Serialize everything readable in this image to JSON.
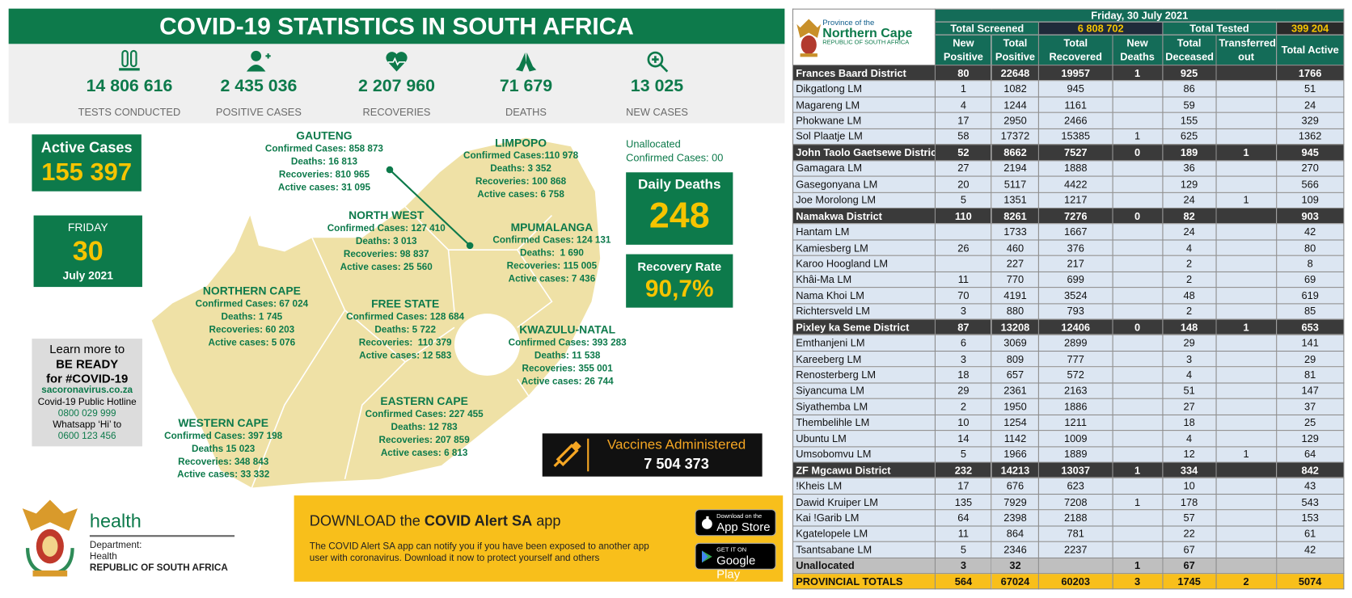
{
  "header": {
    "title": "COVID-19 STATISTICS IN SOUTH AFRICA"
  },
  "stats": [
    {
      "value": "14 806 616",
      "label": "TESTS CONDUCTED"
    },
    {
      "value": "2 435 036",
      "label": "POSITIVE CASES"
    },
    {
      "value": "2 207 960",
      "label": "RECOVERIES"
    },
    {
      "value": "71 679",
      "label": "DEATHS"
    },
    {
      "value": "13 025",
      "label": "NEW CASES"
    }
  ],
  "active_cases": {
    "label": "Active Cases",
    "value": "155 397"
  },
  "date": {
    "weekday": "FRIDAY",
    "day": "30",
    "month": "July 2021"
  },
  "info": {
    "lines": [
      "Learn more to",
      "BE READY",
      "for #COVID-19",
      "sacoronavirus.co.za",
      "Covid-19 Public Hotline",
      "0800 029 999",
      "Whatsapp ‘Hi’ to",
      "0600 123 456"
    ]
  },
  "provinces": [
    {
      "name": "GAUTENG",
      "lines": [
        "Confirmed Cases: 858 873",
        "Deaths: 16 813",
        "Recoveries: 810 965",
        "Active cases: 31 095"
      ]
    },
    {
      "name": "LIMPOPO",
      "lines": [
        "Confirmed Cases:110 978",
        "Deaths: 3 352",
        "Recoveries: 100 868",
        "Active cases: 6 758"
      ]
    },
    {
      "name": "NORTH WEST",
      "lines": [
        "Confirmed Cases: 127 410",
        "Deaths: 3 013",
        "Recoveries: 98 837",
        "Active cases: 25 560"
      ]
    },
    {
      "name": "MPUMALANGA",
      "lines": [
        "Confirmed Cases: 124 131",
        "Deaths:  1 690",
        "Recoveries: 115 005",
        "Active cases: 7 436"
      ]
    },
    {
      "name": "NORTHERN CAPE",
      "lines": [
        "Confirmed Cases: 67 024",
        "Deaths: 1 745",
        "Recoveries: 60 203",
        "Active cases: 5 076"
      ]
    },
    {
      "name": "FREE STATE",
      "lines": [
        "Confirmed Cases: 128 684",
        "Deaths: 5 722",
        "Recoveries:  110 379",
        "Active cases: 12 583"
      ]
    },
    {
      "name": "KWAZULU-NATAL",
      "lines": [
        "Confirmed Cases: 393 283",
        "Deaths: 11 538",
        "Recoveries: 355 001",
        "Active cases: 26 744"
      ]
    },
    {
      "name": "EASTERN CAPE",
      "lines": [
        "Confirmed Cases: 227 455",
        "Deaths: 12 783",
        "Recoveries: 207 859",
        "Active cases: 6 813"
      ]
    },
    {
      "name": "WESTERN CAPE",
      "lines": [
        "Confirmed Cases: 397 198",
        "Deaths 15 023",
        "Recoveries: 348 843",
        "Active cases: 33 332"
      ]
    }
  ],
  "unallocated": [
    "Unallocated",
    "Confirmed Cases: 00"
  ],
  "daily_deaths": {
    "label": "Daily Deaths",
    "value": "248"
  },
  "recovery_rate": {
    "label": "Recovery Rate",
    "value": "90,7%"
  },
  "vaccines": {
    "label": "Vaccines Administered",
    "value": "7 504 373"
  },
  "footer": {
    "brand": "health",
    "department": [
      "Department:",
      "Health",
      "REPUBLIC OF SOUTH AFRICA"
    ],
    "app": {
      "prefix": "DOWNLOAD the",
      "name": "COVID Alert SA",
      "suffix": "app",
      "description": "The COVID Alert SA app can notify you if you have been exposed to another app user with coronavirus. Download it now to protect yourself and others",
      "app_store": [
        "Download on the",
        "App Store"
      ],
      "google_play": [
        "GET IT ON",
        "Google Play"
      ]
    }
  },
  "table": {
    "logo": [
      "Province of the",
      "Northern Cape",
      "REPUBLIC OF SOUTH AFRICA"
    ],
    "date": "Friday, 30 July 2021",
    "summary": [
      "Total Screened",
      "6 808 702",
      "Total Tested",
      "399 204"
    ],
    "columns": [
      "New Positive",
      "Total Positive",
      "Total Recovered",
      "New Deaths",
      "Total Deceased",
      "Transferred out",
      "Total Active"
    ],
    "districts": [
      {
        "row": [
          "Frances Baard District",
          80,
          22648,
          19957,
          1,
          925,
          null,
          1766
        ],
        "municipalities": [
          [
            "Dikgatlong LM",
            1,
            1082,
            945,
            null,
            86,
            null,
            51
          ],
          [
            "Magareng LM",
            4,
            1244,
            1161,
            null,
            59,
            null,
            24
          ],
          [
            "Phokwane LM",
            17,
            2950,
            2466,
            null,
            155,
            null,
            329
          ],
          [
            "Sol Plaatje LM",
            58,
            17372,
            15385,
            1,
            625,
            null,
            1362
          ]
        ]
      },
      {
        "row": [
          "John Taolo Gaetsewe District",
          52,
          8662,
          7527,
          0,
          189,
          1,
          945
        ],
        "municipalities": [
          [
            "Gamagara LM",
            27,
            2194,
            1888,
            null,
            36,
            null,
            270
          ],
          [
            "Gasegonyana LM",
            20,
            5117,
            4422,
            null,
            129,
            null,
            566
          ],
          [
            "Joe Morolong LM",
            5,
            1351,
            1217,
            null,
            24,
            1,
            109
          ]
        ]
      },
      {
        "row": [
          "Namakwa District",
          110,
          8261,
          7276,
          0,
          82,
          null,
          903
        ],
        "municipalities": [
          [
            "Hantam LM",
            null,
            1733,
            1667,
            null,
            24,
            null,
            42
          ],
          [
            "Kamiesberg LM",
            26,
            460,
            376,
            null,
            4,
            null,
            80
          ],
          [
            "Karoo Hoogland LM",
            null,
            227,
            217,
            null,
            2,
            null,
            8
          ],
          [
            "Khâi-Ma LM",
            11,
            770,
            699,
            null,
            2,
            null,
            69
          ],
          [
            "Nama Khoi LM",
            70,
            4191,
            3524,
            null,
            48,
            null,
            619
          ],
          [
            "Richtersveld LM",
            3,
            880,
            793,
            null,
            2,
            null,
            85
          ]
        ]
      },
      {
        "row": [
          "Pixley ka Seme District",
          87,
          13208,
          12406,
          0,
          148,
          1,
          653
        ],
        "municipalities": [
          [
            "Emthanjeni LM",
            6,
            3069,
            2899,
            null,
            29,
            null,
            141
          ],
          [
            "Kareeberg LM",
            3,
            809,
            777,
            null,
            3,
            null,
            29
          ],
          [
            "Renosterberg LM",
            18,
            657,
            572,
            null,
            4,
            null,
            81
          ],
          [
            "Siyancuma LM",
            29,
            2361,
            2163,
            null,
            51,
            null,
            147
          ],
          [
            "Siyathemba LM",
            2,
            1950,
            1886,
            null,
            27,
            null,
            37
          ],
          [
            "Thembelihle LM",
            10,
            1254,
            1211,
            null,
            18,
            null,
            25
          ],
          [
            "Ubuntu LM",
            14,
            1142,
            1009,
            null,
            4,
            null,
            129
          ],
          [
            "Umsobomvu LM",
            5,
            1966,
            1889,
            null,
            12,
            1,
            64
          ]
        ]
      },
      {
        "row": [
          "ZF Mgcawu District",
          232,
          14213,
          13037,
          1,
          334,
          null,
          842
        ],
        "municipalities": [
          [
            "!Kheis LM",
            17,
            676,
            623,
            null,
            10,
            null,
            43
          ],
          [
            "Dawid Kruiper LM",
            135,
            7929,
            7208,
            1,
            178,
            null,
            543
          ],
          [
            "Kai !Garib LM",
            64,
            2398,
            2188,
            null,
            57,
            null,
            153
          ],
          [
            "Kgatelopele LM",
            11,
            864,
            781,
            null,
            22,
            null,
            61
          ],
          [
            "Tsantsabane LM",
            5,
            2346,
            2237,
            null,
            67,
            null,
            42
          ]
        ]
      }
    ],
    "unallocated": [
      "Unallocated",
      3,
      32,
      null,
      1,
      67,
      null,
      null
    ],
    "totals": [
      "PROVINCIAL TOTALS",
      564,
      67024,
      60203,
      3,
      1745,
      2,
      5074
    ]
  }
}
